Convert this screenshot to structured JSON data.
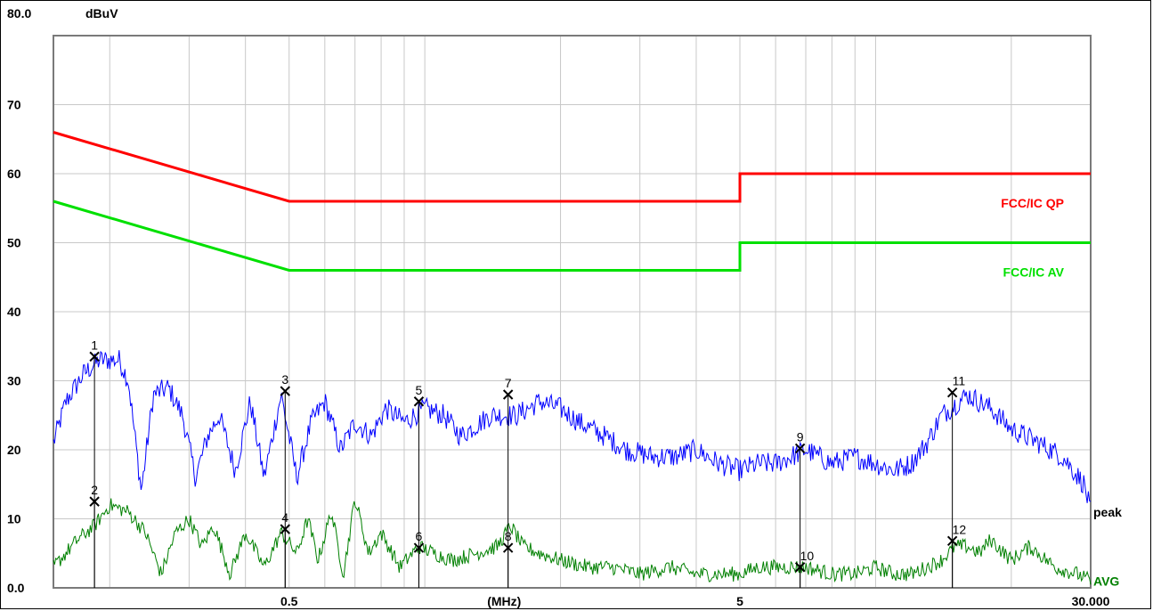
{
  "chart_data": {
    "type": "line",
    "ylabel": "dBuV",
    "ytop_label": "80.0",
    "ylim": [
      0,
      80
    ],
    "y_ticks": [
      "0.0",
      "10",
      "20",
      "30",
      "40",
      "50",
      "60",
      "70"
    ],
    "y_tick_values": [
      0,
      10,
      20,
      30,
      40,
      50,
      60,
      70
    ],
    "x_scale": "log",
    "xlim": [
      0.15,
      30
    ],
    "x_ticks": [
      "0.5",
      "(MHz)",
      "5",
      "30.000"
    ],
    "x_tick_values": [
      0.5,
      1.5,
      5,
      30
    ],
    "grid": true,
    "limit_lines": [
      {
        "name": "FCC/IC QP",
        "color": "#ff0000",
        "points": [
          [
            0.15,
            66
          ],
          [
            0.5,
            56
          ],
          [
            5,
            56
          ],
          [
            5,
            60
          ],
          [
            30,
            60
          ]
        ]
      },
      {
        "name": "FCC/IC AV",
        "color": "#00e000",
        "points": [
          [
            0.15,
            56
          ],
          [
            0.5,
            46
          ],
          [
            5,
            46
          ],
          [
            5,
            50
          ],
          [
            30,
            50
          ]
        ]
      }
    ],
    "series": [
      {
        "name": "peak",
        "color": "#0000ff",
        "x": [
          0.15,
          0.16,
          0.175,
          0.19,
          0.21,
          0.22,
          0.235,
          0.25,
          0.27,
          0.29,
          0.31,
          0.33,
          0.35,
          0.38,
          0.41,
          0.44,
          0.48,
          0.52,
          0.56,
          0.6,
          0.65,
          0.7,
          0.76,
          0.82,
          0.9,
          1.0,
          1.1,
          1.2,
          1.4,
          1.6,
          1.8,
          2.0,
          2.2,
          2.5,
          2.8,
          3.2,
          3.6,
          4.0,
          4.5,
          5.0,
          5.5,
          6.0,
          6.5,
          7.0,
          8.0,
          9.0,
          10.0,
          11.0,
          12.0,
          13.0,
          14.0,
          16.0,
          18.0,
          20.0,
          23.0,
          26.0,
          29.0,
          30.0
        ],
        "values": [
          21,
          27,
          31,
          33,
          33,
          30,
          14,
          28,
          29,
          25,
          16,
          22,
          25,
          17,
          27,
          16,
          28,
          16,
          24,
          27,
          20,
          24,
          22,
          26,
          24,
          26,
          25,
          22,
          25,
          25,
          27,
          26,
          24,
          22,
          20,
          19,
          19,
          20,
          18,
          17,
          18,
          18,
          19,
          20,
          18,
          19,
          18,
          17,
          18,
          21,
          25,
          28,
          26,
          23,
          21,
          19,
          15,
          11
        ],
        "markers": [
          {
            "id": "1",
            "x": 0.185,
            "y": 33.5
          },
          {
            "id": "3",
            "x": 0.49,
            "y": 28.5
          },
          {
            "id": "5",
            "x": 0.97,
            "y": 27.0
          },
          {
            "id": "7",
            "x": 1.53,
            "y": 28.0
          },
          {
            "id": "9",
            "x": 6.8,
            "y": 20.2
          },
          {
            "id": "11",
            "x": 14.8,
            "y": 28.3
          }
        ]
      },
      {
        "name": "AVG",
        "color": "#008000",
        "x": [
          0.15,
          0.17,
          0.185,
          0.2,
          0.22,
          0.24,
          0.26,
          0.28,
          0.3,
          0.32,
          0.34,
          0.37,
          0.4,
          0.44,
          0.48,
          0.52,
          0.55,
          0.58,
          0.62,
          0.66,
          0.7,
          0.75,
          0.8,
          0.88,
          0.97,
          1.05,
          1.15,
          1.3,
          1.45,
          1.55,
          1.65,
          1.8,
          2.0,
          2.3,
          2.6,
          3.0,
          3.5,
          4.0,
          4.5,
          5.0,
          5.5,
          6.0,
          7.0,
          8.0,
          9.0,
          10.0,
          11.0,
          12.0,
          13.0,
          14.0,
          15.0,
          16.0,
          17.0,
          18.0,
          20.0,
          22.0,
          25.0,
          28.0,
          30.0
        ],
        "values": [
          3,
          7,
          9,
          12,
          11,
          8,
          2,
          8,
          10,
          6,
          9,
          2,
          8,
          3,
          8,
          5,
          10,
          4,
          11,
          2,
          13,
          5,
          8,
          3,
          6,
          5,
          4,
          5,
          6,
          9,
          6,
          5,
          4,
          3,
          3,
          2,
          3,
          2,
          2,
          2,
          3,
          3,
          3,
          2,
          2,
          3,
          2,
          2,
          3,
          4,
          6,
          6,
          5,
          7,
          4,
          6,
          3,
          2,
          1
        ],
        "markers": [
          {
            "id": "2",
            "x": 0.185,
            "y": 12.5
          },
          {
            "id": "4",
            "x": 0.49,
            "y": 8.5
          },
          {
            "id": "6",
            "x": 0.97,
            "y": 5.8
          },
          {
            "id": "8",
            "x": 1.53,
            "y": 5.8
          },
          {
            "id": "10",
            "x": 6.8,
            "y": 3.0
          },
          {
            "id": "12",
            "x": 14.8,
            "y": 6.8
          }
        ]
      }
    ]
  }
}
